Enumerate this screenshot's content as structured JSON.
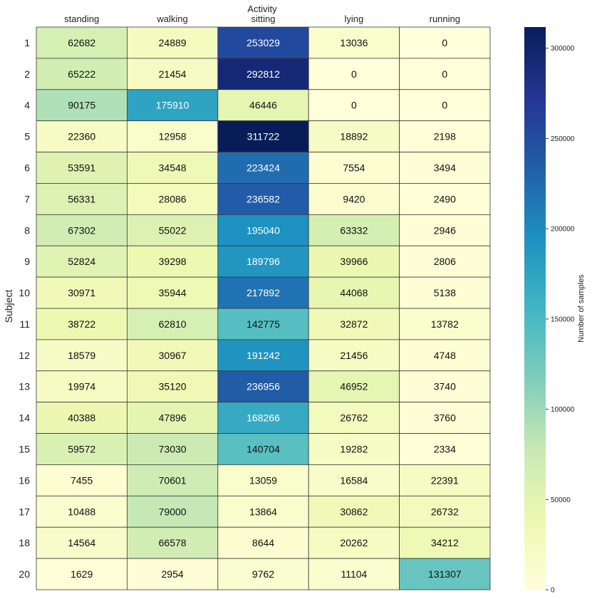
{
  "chart_data": {
    "type": "heatmap",
    "title": "Activity",
    "xlabel": "",
    "ylabel": "Subject",
    "colorbar_label": "Number of samples",
    "colormap": "YlGnBu",
    "vmin": 0,
    "vmax": 311722,
    "colorbar_ticks": [
      "0",
      "50000",
      "100000",
      "150000",
      "200000",
      "250000",
      "300000"
    ],
    "columns": [
      "standing",
      "walking",
      "sitting",
      "lying",
      "running"
    ],
    "rows": [
      "1",
      "2",
      "4",
      "5",
      "6",
      "7",
      "8",
      "9",
      "10",
      "11",
      "12",
      "13",
      "14",
      "15",
      "16",
      "17",
      "18",
      "20"
    ],
    "values": [
      [
        62682,
        24889,
        253029,
        13036,
        0
      ],
      [
        65222,
        21454,
        292812,
        0,
        0
      ],
      [
        90175,
        175910,
        46446,
        0,
        0
      ],
      [
        22360,
        12958,
        311722,
        18892,
        2198
      ],
      [
        53591,
        34548,
        223424,
        7554,
        3494
      ],
      [
        56331,
        28086,
        236582,
        9420,
        2490
      ],
      [
        67302,
        55022,
        195040,
        63332,
        2946
      ],
      [
        52824,
        39298,
        189796,
        39966,
        2806
      ],
      [
        30971,
        35944,
        217892,
        44068,
        5138
      ],
      [
        38722,
        62810,
        142775,
        32872,
        13782
      ],
      [
        18579,
        30967,
        191242,
        21456,
        4748
      ],
      [
        19974,
        35120,
        236956,
        46952,
        3740
      ],
      [
        40388,
        47896,
        168266,
        26762,
        3760
      ],
      [
        59572,
        73030,
        140704,
        19282,
        2334
      ],
      [
        7455,
        70601,
        13059,
        16584,
        22391
      ],
      [
        10488,
        79000,
        13864,
        30862,
        26732
      ],
      [
        14564,
        66578,
        8644,
        20262,
        34212
      ],
      [
        1629,
        2954,
        9762,
        11104,
        131307
      ]
    ]
  }
}
